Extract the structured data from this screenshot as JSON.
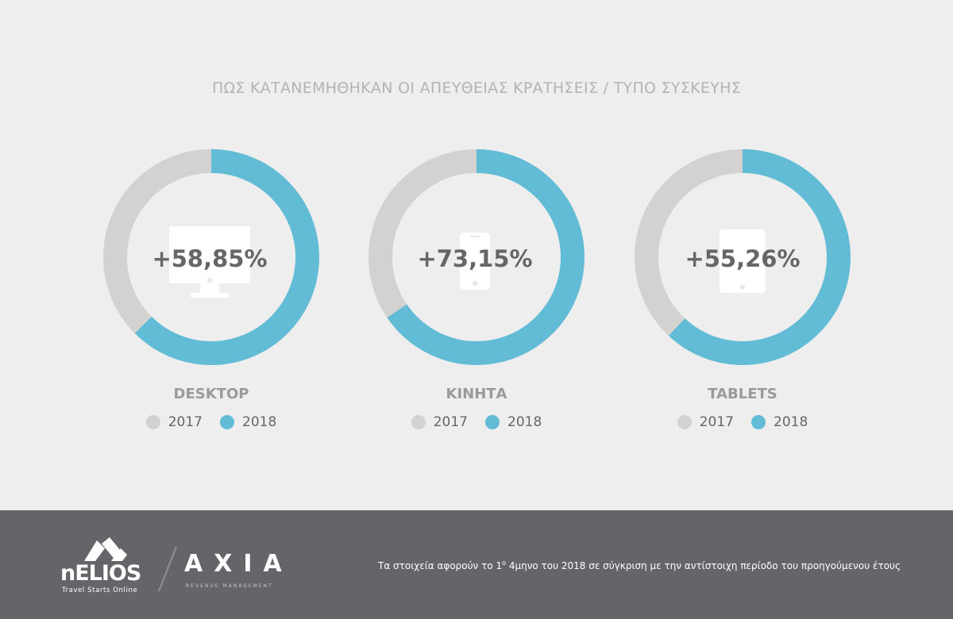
{
  "title": "ΠΩΣ ΚΑΤΑΝΕΜΗΘΗΚΑΝ ΟΙ ΑΠΕΥΘΕΙΑΣ ΚΡΑΤΗΣΕΙΣ / ΤΥΠΟ ΣΥΣΚΕΥΗΣ",
  "colors": {
    "y2017": "#d3d2d1",
    "y2018": "#62bcd6",
    "value_text": "#666666",
    "icon": "#ffffff"
  },
  "chart_data": [
    {
      "type": "pie",
      "title": "DESKTOP",
      "center_label": "+58,85%",
      "icon": "desktop-monitor-icon",
      "categories": [
        "2017",
        "2018"
      ],
      "values": [
        37.5,
        62.5
      ]
    },
    {
      "type": "pie",
      "title": "ΚΙΝΗΤΑ",
      "center_label": "+73,15%",
      "icon": "mobile-phone-icon",
      "categories": [
        "2017",
        "2018"
      ],
      "values": [
        34.5,
        65.5
      ]
    },
    {
      "type": "pie",
      "title": "TABLETS",
      "center_label": "+55,26%",
      "icon": "tablet-icon",
      "categories": [
        "2017",
        "2018"
      ],
      "values": [
        38,
        62
      ]
    }
  ],
  "legend": [
    "2017",
    "2018"
  ],
  "footer": {
    "nelios_brand": "nELIOS",
    "nelios_tagline": "Travel Starts Online",
    "axia_brand": "AXIA",
    "axia_subtitle": "REVENUE MANAGEMENT",
    "footnote_pre": "Τα στοιχεία αφορούν το 1",
    "footnote_sup": "ο",
    "footnote_post": " 4μηνο του 2018 σε σύγκριση με την αντίστοιχη περίοδο του προηγούμενου έτους"
  }
}
